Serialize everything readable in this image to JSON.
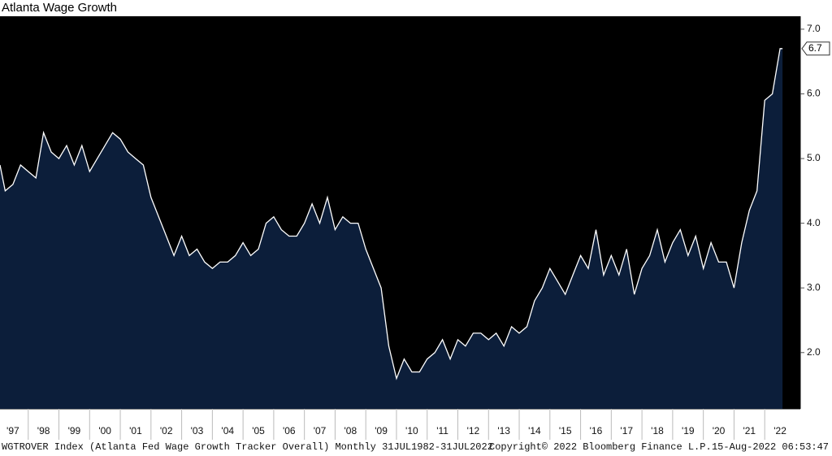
{
  "chart_data": {
    "type": "area",
    "title": "Atlanta Wage Growth",
    "footer": [
      "WGTROVER Index (Atlanta Fed Wage Growth Tracker Overall) Monthly 31JUL1982-31JUL2022",
      "Copyright© 2022 Bloomberg Finance L.P.",
      "15-Aug-2022 06:53:47"
    ],
    "x": [
      1997.08,
      1997.25,
      1997.5,
      1997.75,
      1998,
      1998.25,
      1998.5,
      1998.75,
      1999,
      1999.25,
      1999.5,
      1999.75,
      2000,
      2000.25,
      2000.5,
      2000.75,
      2001,
      2001.25,
      2001.5,
      2001.75,
      2002,
      2002.25,
      2002.5,
      2002.75,
      2003,
      2003.25,
      2003.5,
      2003.75,
      2004,
      2004.25,
      2004.5,
      2004.75,
      2005,
      2005.25,
      2005.5,
      2005.75,
      2006,
      2006.25,
      2006.5,
      2006.75,
      2007,
      2007.25,
      2007.5,
      2007.75,
      2008,
      2008.25,
      2008.5,
      2008.75,
      2009,
      2009.25,
      2009.5,
      2009.75,
      2010,
      2010.25,
      2010.5,
      2010.75,
      2011,
      2011.25,
      2011.5,
      2011.75,
      2012,
      2012.25,
      2012.5,
      2012.75,
      2013,
      2013.25,
      2013.5,
      2013.75,
      2014,
      2014.25,
      2014.5,
      2014.75,
      2015,
      2015.25,
      2015.5,
      2015.75,
      2016,
      2016.25,
      2016.5,
      2016.75,
      2017,
      2017.25,
      2017.5,
      2017.75,
      2018,
      2018.25,
      2018.5,
      2018.75,
      2019,
      2019.25,
      2019.5,
      2019.75,
      2020,
      2020.25,
      2020.5,
      2020.75,
      2021,
      2021.25,
      2021.5,
      2021.75,
      2022,
      2022.25,
      2022.5,
      2022.58
    ],
    "series": [
      {
        "color": "#0c1e3a",
        "line_color": "#ffffff",
        "values": [
          4.9,
          4.5,
          4.6,
          4.9,
          4.8,
          4.7,
          5.4,
          5.1,
          5.0,
          5.2,
          4.9,
          5.2,
          4.8,
          5.0,
          5.2,
          5.4,
          5.3,
          5.1,
          5.0,
          4.9,
          4.4,
          4.1,
          3.8,
          3.5,
          3.8,
          3.5,
          3.6,
          3.4,
          3.3,
          3.4,
          3.4,
          3.5,
          3.7,
          3.5,
          3.6,
          4.0,
          4.1,
          3.9,
          3.8,
          3.8,
          4.0,
          4.3,
          4.0,
          4.4,
          3.9,
          4.1,
          4.0,
          4.0,
          3.6,
          3.3,
          3.0,
          2.1,
          1.6,
          1.9,
          1.7,
          1.7,
          1.9,
          2.0,
          2.2,
          1.9,
          2.2,
          2.1,
          2.3,
          2.3,
          2.2,
          2.3,
          2.1,
          2.4,
          2.3,
          2.4,
          2.8,
          3.0,
          3.3,
          3.1,
          2.9,
          3.2,
          3.5,
          3.3,
          3.9,
          3.2,
          3.5,
          3.2,
          3.6,
          2.9,
          3.3,
          3.5,
          3.9,
          3.4,
          3.7,
          3.9,
          3.5,
          3.8,
          3.3,
          3.7,
          3.4,
          3.4,
          3.0,
          3.7,
          4.2,
          4.5,
          5.9,
          6.0,
          6.7,
          6.7
        ]
      }
    ],
    "xlim": [
      1997.08,
      2023.16
    ],
    "xticks": [
      {
        "value": 1997,
        "label": "'97"
      },
      {
        "value": 1998,
        "label": "'98"
      },
      {
        "value": 1999,
        "label": "'99"
      },
      {
        "value": 2000,
        "label": "'00"
      },
      {
        "value": 2001,
        "label": "'01"
      },
      {
        "value": 2002,
        "label": "'02"
      },
      {
        "value": 2003,
        "label": "'03"
      },
      {
        "value": 2004,
        "label": "'04"
      },
      {
        "value": 2005,
        "label": "'05"
      },
      {
        "value": 2006,
        "label": "'06"
      },
      {
        "value": 2007,
        "label": "'07"
      },
      {
        "value": 2008,
        "label": "'08"
      },
      {
        "value": 2009,
        "label": "'09"
      },
      {
        "value": 2010,
        "label": "'10"
      },
      {
        "value": 2011,
        "label": "'11"
      },
      {
        "value": 2012,
        "label": "'12"
      },
      {
        "value": 2013,
        "label": "'13"
      },
      {
        "value": 2014,
        "label": "'14"
      },
      {
        "value": 2015,
        "label": "'15"
      },
      {
        "value": 2016,
        "label": "'16"
      },
      {
        "value": 2017,
        "label": "'17"
      },
      {
        "value": 2018,
        "label": "'18"
      },
      {
        "value": 2019,
        "label": "'19"
      },
      {
        "value": 2020,
        "label": "'20"
      },
      {
        "value": 2021,
        "label": "'21"
      },
      {
        "value": 2022,
        "label": "'22"
      }
    ],
    "ylim": [
      1.13,
      7.2
    ],
    "yticks": [
      {
        "value": 2,
        "label": "2.0"
      },
      {
        "value": 3,
        "label": "3.0"
      },
      {
        "value": 4,
        "label": "4.0"
      },
      {
        "value": 5,
        "label": "5.0"
      },
      {
        "value": 6,
        "label": "6.0"
      },
      {
        "value": 7,
        "label": "7.0"
      }
    ],
    "y_axis_side": "right",
    "background": "#000000"
  }
}
